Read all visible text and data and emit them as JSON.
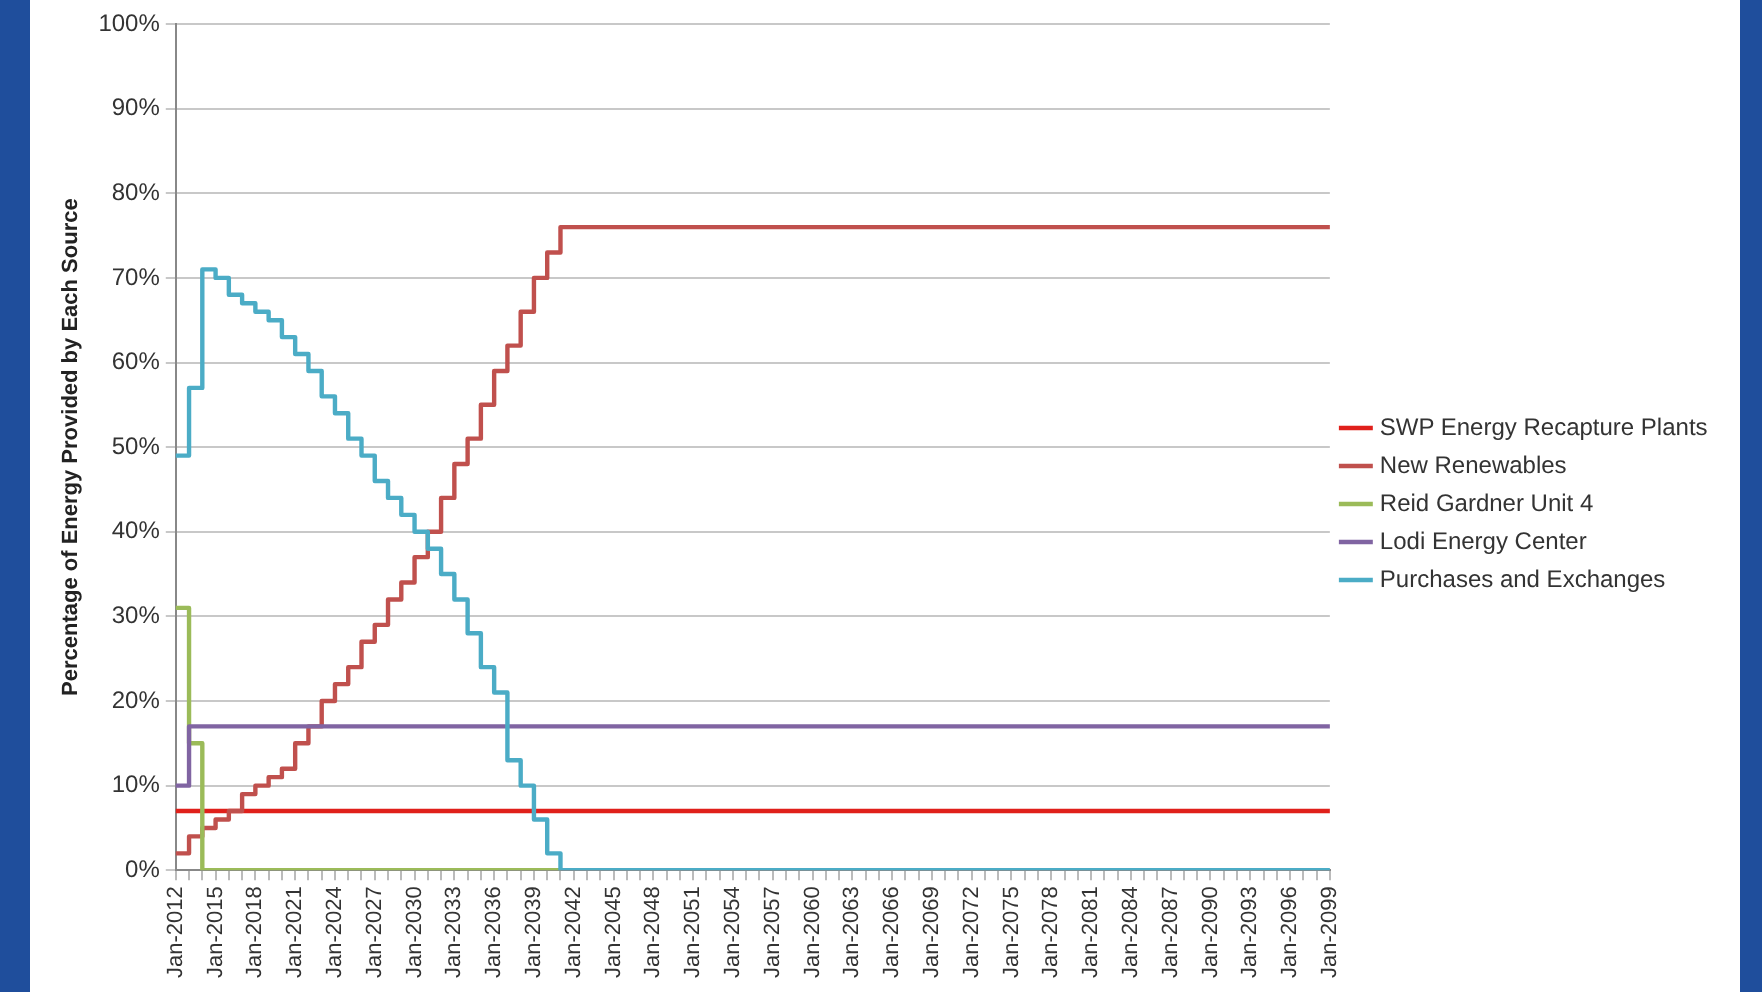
{
  "chart_data": {
    "type": "step",
    "ylabel": "Percentage of Energy Provided by Each Source",
    "categories": [
      "Jan-2012",
      null,
      null,
      "Jan-2015",
      null,
      null,
      "Jan-2018",
      null,
      null,
      "Jan-2021",
      null,
      null,
      "Jan-2024",
      null,
      null,
      "Jan-2027",
      null,
      null,
      "Jan-2030",
      null,
      null,
      "Jan-2033",
      null,
      null,
      "Jan-2036",
      null,
      null,
      "Jan-2039",
      null,
      null,
      "Jan-2042",
      null,
      null,
      "Jan-2045",
      null,
      null,
      "Jan-2048",
      null,
      null,
      "Jan-2051",
      null,
      null,
      "Jan-2054",
      null,
      null,
      "Jan-2057",
      null,
      null,
      "Jan-2060",
      null,
      null,
      "Jan-2063",
      null,
      null,
      "Jan-2066",
      null,
      null,
      "Jan-2069",
      null,
      null,
      "Jan-2072",
      null,
      null,
      "Jan-2075",
      null,
      null,
      "Jan-2078",
      null,
      null,
      "Jan-2081",
      null,
      null,
      "Jan-2084",
      null,
      null,
      "Jan-2087",
      null,
      null,
      "Jan-2090",
      null,
      null,
      "Jan-2093",
      null,
      null,
      "Jan-2096",
      null,
      null,
      "Jan-2099"
    ],
    "series": [
      {
        "name": "SWP Energy Recapture Plants",
        "color": "#e0201b",
        "values": [
          7,
          7,
          7,
          7,
          7,
          7,
          7,
          7,
          7,
          7,
          7,
          7,
          7,
          7,
          7,
          7,
          7,
          7,
          7,
          7,
          7,
          7,
          7,
          7,
          7,
          7,
          7,
          7,
          7,
          7,
          7,
          7,
          7,
          7,
          7,
          7,
          7,
          7,
          7,
          7,
          7,
          7,
          7,
          7,
          7,
          7,
          7,
          7,
          7,
          7,
          7,
          7,
          7,
          7,
          7,
          7,
          7,
          7,
          7,
          7,
          7,
          7,
          7,
          7,
          7,
          7,
          7,
          7,
          7,
          7,
          7,
          7,
          7,
          7,
          7,
          7,
          7,
          7,
          7,
          7,
          7,
          7,
          7,
          7,
          7,
          7,
          7,
          7
        ]
      },
      {
        "name": "New Renewables",
        "color": "#c0504d",
        "values": [
          2,
          4,
          5,
          6,
          7,
          9,
          10,
          11,
          12,
          15,
          17,
          20,
          22,
          24,
          27,
          29,
          32,
          34,
          37,
          40,
          44,
          48,
          51,
          55,
          59,
          62,
          66,
          70,
          73,
          76,
          76,
          76,
          76,
          76,
          76,
          76,
          76,
          76,
          76,
          76,
          76,
          76,
          76,
          76,
          76,
          76,
          76,
          76,
          76,
          76,
          76,
          76,
          76,
          76,
          76,
          76,
          76,
          76,
          76,
          76,
          76,
          76,
          76,
          76,
          76,
          76,
          76,
          76,
          76,
          76,
          76,
          76,
          76,
          76,
          76,
          76,
          76,
          76,
          76,
          76,
          76,
          76,
          76,
          76,
          76,
          76,
          76,
          76
        ]
      },
      {
        "name": "Reid Gardner Unit 4",
        "color": "#9bbb59",
        "values": [
          31,
          15,
          0,
          0,
          0,
          0,
          0,
          0,
          0,
          0,
          0,
          0,
          0,
          0,
          0,
          0,
          0,
          0,
          0,
          0,
          0,
          0,
          0,
          0,
          0,
          0,
          0,
          0,
          0,
          0,
          null,
          null,
          null,
          null,
          null,
          null,
          null,
          null,
          null,
          null,
          null,
          null,
          null,
          null,
          null,
          null,
          null,
          null,
          null,
          null,
          null,
          null,
          null,
          null,
          null,
          null,
          null,
          null,
          null,
          null,
          null,
          null,
          null,
          null,
          null,
          null,
          null,
          null,
          null,
          null,
          null,
          null,
          null,
          null,
          null,
          null,
          null,
          null,
          null,
          null,
          null,
          null,
          null,
          null,
          null,
          null,
          null,
          null
        ]
      },
      {
        "name": "Lodi Energy Center",
        "color": "#8064a2",
        "values": [
          10,
          17,
          17,
          17,
          17,
          17,
          17,
          17,
          17,
          17,
          17,
          17,
          17,
          17,
          17,
          17,
          17,
          17,
          17,
          17,
          17,
          17,
          17,
          17,
          17,
          17,
          17,
          17,
          17,
          17,
          17,
          17,
          17,
          17,
          17,
          17,
          17,
          17,
          17,
          17,
          17,
          17,
          17,
          17,
          17,
          17,
          17,
          17,
          17,
          17,
          17,
          17,
          17,
          17,
          17,
          17,
          17,
          17,
          17,
          17,
          17,
          17,
          17,
          17,
          17,
          17,
          17,
          17,
          17,
          17,
          17,
          17,
          17,
          17,
          17,
          17,
          17,
          17,
          17,
          17,
          17,
          17,
          17,
          17,
          17,
          17,
          17,
          17
        ]
      },
      {
        "name": "Purchases and Exchanges",
        "color": "#4bacc6",
        "values": [
          49,
          57,
          71,
          70,
          68,
          67,
          66,
          65,
          63,
          61,
          59,
          56,
          54,
          51,
          49,
          46,
          44,
          42,
          40,
          38,
          35,
          32,
          28,
          24,
          21,
          13,
          10,
          6,
          2,
          0,
          0,
          0,
          0,
          0,
          0,
          0,
          0,
          0,
          0,
          0,
          0,
          0,
          0,
          0,
          0,
          0,
          0,
          0,
          0,
          0,
          0,
          0,
          0,
          0,
          0,
          0,
          0,
          0,
          0,
          0,
          0,
          0,
          0,
          0,
          0,
          0,
          0,
          0,
          0,
          0,
          0,
          0,
          0,
          0,
          0,
          0,
          0,
          0,
          0,
          0,
          0,
          0,
          0,
          0,
          0,
          0,
          0,
          0
        ]
      }
    ],
    "ylim": [
      0,
      100
    ],
    "yticks": [
      {
        "value": 0,
        "label": "0%"
      },
      {
        "value": 10,
        "label": "10%"
      },
      {
        "value": 20,
        "label": "20%"
      },
      {
        "value": 30,
        "label": "30%"
      },
      {
        "value": 40,
        "label": "40%"
      },
      {
        "value": 50,
        "label": "50%"
      },
      {
        "value": 60,
        "label": "60%"
      },
      {
        "value": 70,
        "label": "70%"
      },
      {
        "value": 80,
        "label": "80%"
      },
      {
        "value": 90,
        "label": "90%"
      },
      {
        "value": 100,
        "label": "100%"
      }
    ],
    "grid": "y",
    "legend": "right",
    "marker": "none",
    "line_style": "solid"
  }
}
